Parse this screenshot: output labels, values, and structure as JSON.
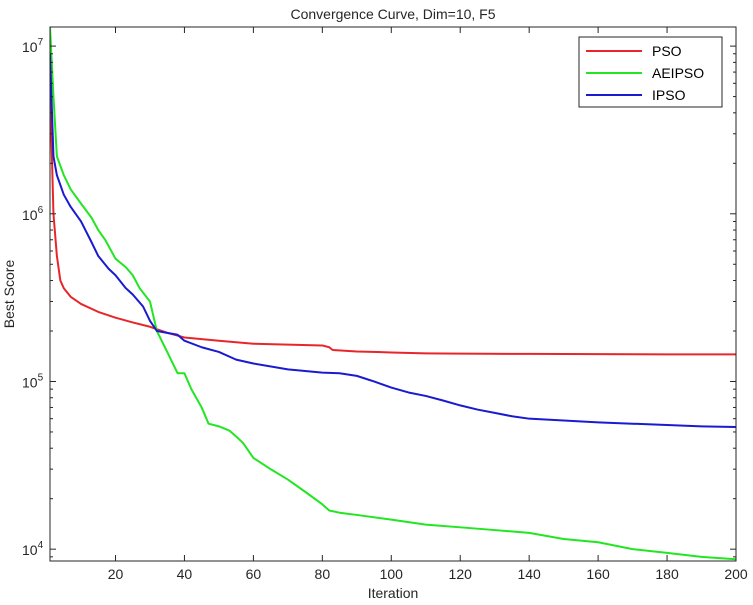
{
  "chart_data": {
    "type": "line",
    "title": "Convergence Curve, Dim=10, F5",
    "xlabel": "Iteration",
    "ylabel": "Best Score",
    "xlim": [
      1,
      200
    ],
    "ylim": [
      8500,
      13000000
    ],
    "yscale": "log",
    "grid": false,
    "legend_position": "top-right",
    "x_ticks": [
      20,
      40,
      60,
      80,
      100,
      120,
      140,
      160,
      180,
      200
    ],
    "x_tick_labels": [
      "20",
      "40",
      "60",
      "80",
      "100",
      "120",
      "140",
      "160",
      "180",
      "200"
    ],
    "y_ticks": [
      10000,
      100000,
      1000000,
      10000000
    ],
    "y_tick_bases": [
      "10",
      "10",
      "10",
      "10"
    ],
    "y_tick_exps": [
      "4",
      "5",
      "6",
      "7"
    ],
    "series": [
      {
        "name": "PSO",
        "color": "#e8262a",
        "x": [
          1,
          2,
          3,
          4,
          5,
          7,
          10,
          15,
          20,
          25,
          30,
          35,
          40,
          50,
          60,
          70,
          80,
          82,
          83,
          90,
          100,
          110,
          120,
          140,
          160,
          180,
          200
        ],
        "y": [
          6000000,
          1000000,
          560000,
          400000,
          360000,
          320000,
          290000,
          260000,
          240000,
          225000,
          212000,
          195000,
          183000,
          175000,
          168000,
          166000,
          164000,
          160000,
          154000,
          151000,
          149000,
          147000,
          146500,
          146000,
          145500,
          145200,
          145000
        ]
      },
      {
        "name": "AEIPSO",
        "color": "#22e622",
        "x": [
          1,
          2,
          3,
          5,
          7,
          10,
          13,
          15,
          17,
          20,
          23,
          25,
          27,
          30,
          32,
          35,
          38,
          40,
          42,
          45,
          47,
          50,
          53,
          55,
          57,
          60,
          65,
          70,
          75,
          80,
          82,
          85,
          90,
          100,
          110,
          120,
          130,
          140,
          150,
          160,
          170,
          180,
          190,
          200
        ],
        "y": [
          13000000,
          5000000,
          2200000,
          1700000,
          1400000,
          1150000,
          950000,
          800000,
          700000,
          540000,
          480000,
          430000,
          360000,
          300000,
          200000,
          150000,
          112000,
          112000,
          90000,
          70000,
          56000,
          54000,
          51000,
          47000,
          43000,
          35000,
          30000,
          26000,
          22000,
          18500,
          17000,
          16500,
          16000,
          15000,
          14000,
          13500,
          13000,
          12500,
          11500,
          11000,
          10000,
          9500,
          9000,
          8700
        ]
      },
      {
        "name": "IPSO",
        "color": "#1a1ad0",
        "x": [
          1,
          2,
          3,
          5,
          7,
          10,
          13,
          15,
          18,
          20,
          23,
          25,
          28,
          30,
          32,
          35,
          38,
          40,
          45,
          50,
          55,
          60,
          70,
          80,
          85,
          90,
          95,
          100,
          105,
          110,
          115,
          120,
          125,
          130,
          135,
          140,
          150,
          160,
          170,
          180,
          190,
          200
        ],
        "y": [
          9000000,
          2200000,
          1700000,
          1300000,
          1100000,
          900000,
          680000,
          560000,
          470000,
          430000,
          360000,
          330000,
          280000,
          230000,
          200000,
          195000,
          190000,
          175000,
          160000,
          150000,
          135000,
          128000,
          118000,
          113000,
          112000,
          108000,
          100000,
          92000,
          86000,
          82000,
          77000,
          72000,
          68000,
          65000,
          62000,
          60000,
          58500,
          57000,
          56000,
          55000,
          54000,
          53500
        ]
      }
    ]
  }
}
